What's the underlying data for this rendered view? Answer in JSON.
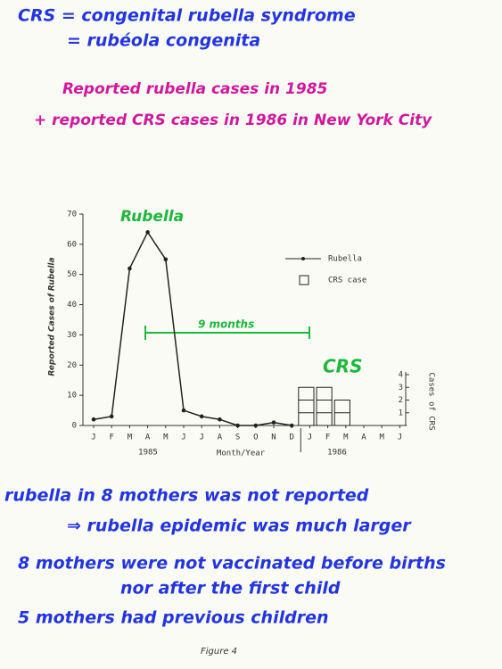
{
  "header": {
    "line1": "CRS = congenital rubella syndrome",
    "line2": "= rubéola congenita"
  },
  "chart_data": {
    "type": "line",
    "title": "Reported rubella cases in 1985",
    "subtitle": "+ reported CRS cases in 1986 in New York City",
    "x_label": "Month/Year",
    "y_label": "Reported Cases of Rubella",
    "y2_label": "Cases of CRS",
    "year_labels": [
      "1985",
      "1986"
    ],
    "annotations": [
      "Rubella",
      "CRS",
      "9 months"
    ],
    "categories": [
      "J",
      "F",
      "M",
      "A",
      "M",
      "J",
      "J",
      "A",
      "S",
      "O",
      "N",
      "D",
      "J",
      "F",
      "M",
      "A",
      "M",
      "J"
    ],
    "series": [
      {
        "name": "Rubella",
        "color": "#222222",
        "values": [
          2,
          3,
          52,
          64,
          55,
          5,
          3,
          2,
          0,
          0,
          1,
          0,
          null,
          null,
          null,
          null,
          null,
          null
        ]
      },
      {
        "name": "CRS case",
        "type": "bar",
        "axis": "y2",
        "color": "#222222",
        "values": [
          null,
          null,
          null,
          null,
          null,
          null,
          null,
          null,
          null,
          null,
          null,
          null,
          3,
          3,
          2,
          null,
          null,
          null
        ]
      }
    ],
    "ylim": [
      0,
      70
    ],
    "yticks": [
      0,
      10,
      20,
      30,
      40,
      50,
      60,
      70
    ],
    "y2lim": [
      0,
      4
    ],
    "y2ticks": [
      1,
      2,
      3,
      4
    ],
    "legend": "upper right"
  },
  "notes": [
    "rubella in 8 mothers was not reported",
    "⇒ rubella epidemic was much larger",
    "8 mothers were not vaccinated before births",
    "nor after the first child",
    "5 mothers had previous children"
  ],
  "footer": "Figure 4"
}
